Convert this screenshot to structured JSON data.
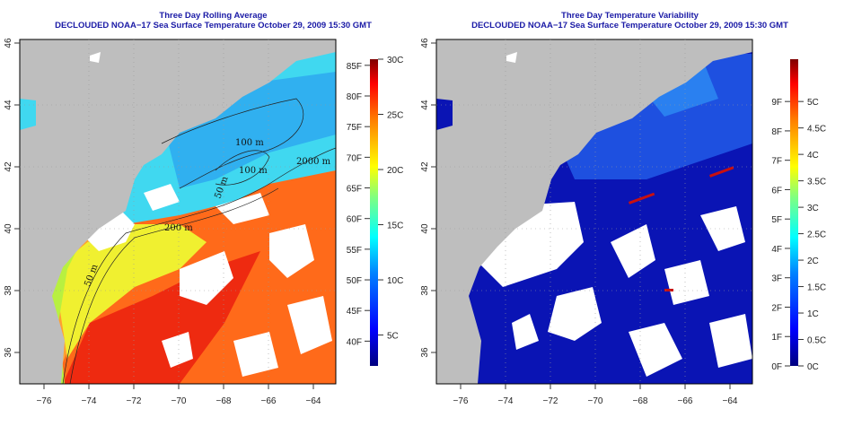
{
  "left_panel": {
    "title": "Three Day Rolling Average",
    "subtitle": "DECLOUDED NOAA−17 Sea Surface Temperature October 29, 2009 15:30 GMT",
    "contour_labels": [
      "100 m",
      "100 m",
      "2000 m",
      "50 m",
      "200 m",
      "50 m"
    ],
    "colorbar": {
      "fahrenheit_labels": [
        "85F",
        "80F",
        "75F",
        "70F",
        "65F",
        "60F",
        "55F",
        "50F",
        "45F",
        "40F"
      ],
      "fahrenheit_values": [
        85,
        80,
        75,
        70,
        65,
        60,
        55,
        50,
        45,
        40
      ],
      "celsius_labels": [
        "30C",
        "25C",
        "20C",
        "15C",
        "10C",
        "5C"
      ],
      "celsius_values": [
        30,
        25,
        20,
        15,
        10,
        5
      ],
      "range_c": [
        2.2,
        30
      ]
    }
  },
  "right_panel": {
    "title": "Three Day Temperature Variability",
    "subtitle": "DECLOUDED NOAA−17 Sea Surface Temperature October 29, 2009 15:30 GMT",
    "colorbar": {
      "fahrenheit_labels": [
        "9F",
        "8F",
        "7F",
        "6F",
        "5F",
        "4F",
        "3F",
        "2F",
        "1F",
        "0F"
      ],
      "fahrenheit_values": [
        9,
        8,
        7,
        6,
        5,
        4,
        3,
        2,
        1,
        0
      ],
      "celsius_labels": [
        "5C",
        "4.5C",
        "4C",
        "3.5C",
        "3C",
        "2.5C",
        "2C",
        "1.5C",
        "1C",
        "0.5C",
        "0C"
      ],
      "celsius_values": [
        5,
        4.5,
        4,
        3.5,
        3,
        2.5,
        2,
        1.5,
        1,
        0.5,
        0
      ],
      "range_c": [
        0,
        5.8
      ]
    }
  },
  "axes": {
    "longitude_labels": [
      "−76",
      "−74",
      "−72",
      "−70",
      "−68",
      "−66",
      "−64"
    ],
    "longitude_values": [
      -76,
      -74,
      -72,
      -70,
      -68,
      -66,
      -64
    ],
    "latitude_labels": [
      "46",
      "44",
      "42",
      "40",
      "38",
      "36"
    ],
    "latitude_values": [
      46,
      44,
      42,
      40,
      38,
      36
    ]
  },
  "colors": {
    "title": "#1a1aa6",
    "land": "#bebebe",
    "cloud": "#ffffff",
    "colormap": [
      "#00007f",
      "#0000ff",
      "#0080ff",
      "#00ffff",
      "#80ff80",
      "#ffff00",
      "#ff8000",
      "#ff0000",
      "#7f0000"
    ]
  }
}
